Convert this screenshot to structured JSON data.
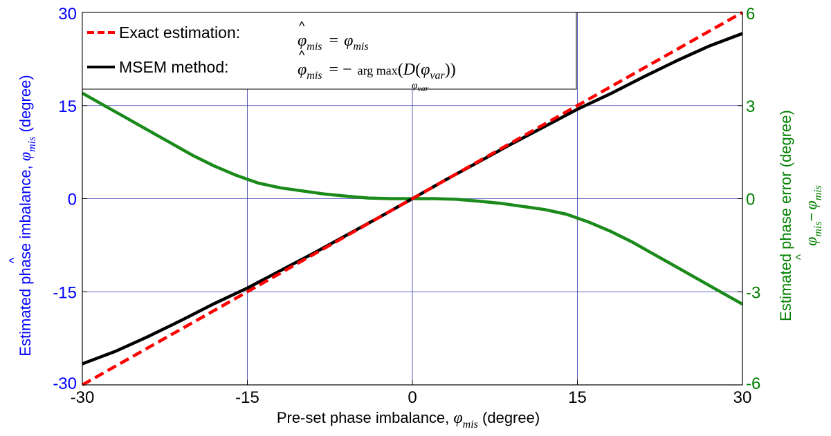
{
  "chart_data": {
    "type": "line",
    "xlabel": "Pre-set phase imbalance, ",
    "xlabel_symbol": "φ",
    "xlabel_sub": "mis",
    "xlabel_unit": " (degree)",
    "ylabel_left": "Estimated phase imbalance, ",
    "ylabel_left_symbol": "φ",
    "ylabel_left_hat": "^",
    "ylabel_left_sub": "mis",
    "ylabel_left_unit": " (degree)",
    "ylabel_right": "Estimated phase error (degree)",
    "ylabel_right_expr_a": "φ",
    "ylabel_right_expr_a_sub": "mis",
    "ylabel_right_minus": "−",
    "ylabel_right_expr_b": "φ",
    "ylabel_right_expr_b_sub": "mis",
    "xlim": [
      -30,
      30
    ],
    "ylim_left": [
      -30,
      30
    ],
    "ylim_right": [
      -6,
      6
    ],
    "xticks": [
      "-30",
      "-15",
      "0",
      "15",
      "30"
    ],
    "xtick_values": [
      -30,
      -15,
      0,
      15,
      30
    ],
    "yticks_left": [
      "-30",
      "-15",
      "0",
      "15",
      "30"
    ],
    "ytick_left_values": [
      -30,
      -15,
      0,
      15,
      30
    ],
    "yticks_right": [
      "-6",
      "-3",
      "0",
      "3",
      "6"
    ],
    "ytick_right_values": [
      -6,
      -3,
      0,
      3,
      6
    ],
    "grid": true,
    "legend_placement": "top-left",
    "colors": {
      "left_axis": "#0000ff",
      "right_axis": "#008000",
      "grid": "#3333aa",
      "exact": "#ff0000",
      "msem": "#000000",
      "error": "#1a8a1a"
    },
    "series": [
      {
        "name": "Exact estimation:",
        "axis": "left",
        "style": "dashed",
        "legend_formula": {
          "lhs_symbol": "φ",
          "lhs_sub": "mis",
          "hat": "^",
          "eq": "=",
          "rhs_symbol": "φ",
          "rhs_sub": "mis"
        },
        "x": [
          -30,
          30
        ],
        "y": [
          -30,
          30
        ]
      },
      {
        "name": "MSEM method:",
        "axis": "left",
        "style": "solid",
        "legend_formula": {
          "lhs_symbol": "φ",
          "lhs_sub": "mis",
          "hat": "^",
          "eq": "= −",
          "op": "arg max",
          "op_sub_symbol": "φ",
          "op_sub": "var",
          "func": "D",
          "arg_symbol": "φ",
          "arg_sub": "var"
        },
        "x": [
          -30,
          -27,
          -24,
          -21,
          -18,
          -15,
          -12,
          -9,
          -6,
          -3,
          0,
          3,
          6,
          9,
          12,
          15,
          18,
          21,
          24,
          27,
          30
        ],
        "y": [
          -26.6,
          -24.6,
          -22.2,
          -19.6,
          -16.9,
          -14.4,
          -11.6,
          -8.8,
          -5.9,
          -3.0,
          0,
          3.0,
          5.9,
          8.8,
          11.6,
          14.4,
          16.9,
          19.6,
          22.2,
          24.6,
          26.6
        ]
      },
      {
        "name": "",
        "axis": "right",
        "style": "solid",
        "x": [
          -30,
          -28,
          -26,
          -24,
          -22,
          -20,
          -18,
          -16,
          -14,
          -12,
          -10,
          -8,
          -6,
          -4,
          -2,
          0,
          2,
          4,
          6,
          8,
          10,
          12,
          14,
          16,
          18,
          20,
          22,
          24,
          26,
          28,
          30
        ],
        "y": [
          3.4,
          3.0,
          2.6,
          2.2,
          1.8,
          1.4,
          1.05,
          0.75,
          0.5,
          0.35,
          0.25,
          0.15,
          0.08,
          0.02,
          0.0,
          0.0,
          0.0,
          -0.02,
          -0.08,
          -0.15,
          -0.25,
          -0.35,
          -0.5,
          -0.75,
          -1.05,
          -1.4,
          -1.8,
          -2.2,
          -2.6,
          -3.0,
          -3.4
        ]
      }
    ]
  }
}
